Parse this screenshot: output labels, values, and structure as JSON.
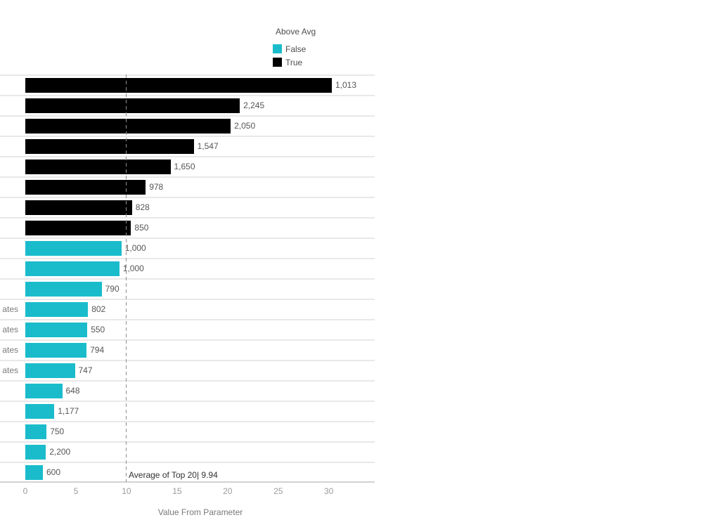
{
  "legend": {
    "title": "Above Avg",
    "items": [
      {
        "label": "False",
        "color": "#1abccb"
      },
      {
        "label": "True",
        "color": "#000000"
      }
    ]
  },
  "chart_data": {
    "type": "bar",
    "orientation": "horizontal",
    "title": "",
    "xlabel": "Value From Parameter",
    "x_ticks": [
      0,
      5,
      10,
      15,
      20,
      25,
      30
    ],
    "xlim": [
      0,
      34.5
    ],
    "grid": "row-dividers",
    "legend_position": "top",
    "reference_line": {
      "value": 9.94,
      "label": "Average of Top 20| 9.94"
    },
    "colors": {
      "above_true": "#000000",
      "above_false": "#1abccb"
    },
    "rows": [
      {
        "row_label_visible": "",
        "bar_value": 30.3,
        "data_label": "1,013",
        "above_avg": true
      },
      {
        "row_label_visible": "",
        "bar_value": 21.2,
        "data_label": "2,245",
        "above_avg": true
      },
      {
        "row_label_visible": "",
        "bar_value": 20.3,
        "data_label": "2,050",
        "above_avg": true
      },
      {
        "row_label_visible": "",
        "bar_value": 16.65,
        "data_label": "1,547",
        "above_avg": true
      },
      {
        "row_label_visible": "",
        "bar_value": 14.35,
        "data_label": "1,650",
        "above_avg": true
      },
      {
        "row_label_visible": "",
        "bar_value": 11.9,
        "data_label": "978",
        "above_avg": true
      },
      {
        "row_label_visible": "",
        "bar_value": 10.55,
        "data_label": "828",
        "above_avg": true
      },
      {
        "row_label_visible": "",
        "bar_value": 10.45,
        "data_label": "850",
        "above_avg": true
      },
      {
        "row_label_visible": "",
        "bar_value": 9.5,
        "data_label": "1,000",
        "above_avg": false
      },
      {
        "row_label_visible": "",
        "bar_value": 9.3,
        "data_label": "1,000",
        "above_avg": false
      },
      {
        "row_label_visible": "",
        "bar_value": 7.55,
        "data_label": "790",
        "above_avg": false
      },
      {
        "row_label_visible": "ates",
        "bar_value": 6.2,
        "data_label": "802",
        "above_avg": false
      },
      {
        "row_label_visible": "ates",
        "bar_value": 6.13,
        "data_label": "550",
        "above_avg": false
      },
      {
        "row_label_visible": "ates",
        "bar_value": 6.05,
        "data_label": "794",
        "above_avg": false
      },
      {
        "row_label_visible": "ates",
        "bar_value": 4.9,
        "data_label": "747",
        "above_avg": false
      },
      {
        "row_label_visible": "",
        "bar_value": 3.65,
        "data_label": "648",
        "above_avg": false
      },
      {
        "row_label_visible": "",
        "bar_value": 2.86,
        "data_label": "1,177",
        "above_avg": false
      },
      {
        "row_label_visible": "",
        "bar_value": 2.1,
        "data_label": "750",
        "above_avg": false
      },
      {
        "row_label_visible": "",
        "bar_value": 2.03,
        "data_label": "2,200",
        "above_avg": false
      },
      {
        "row_label_visible": "",
        "bar_value": 1.74,
        "data_label": "600",
        "above_avg": false
      }
    ]
  }
}
